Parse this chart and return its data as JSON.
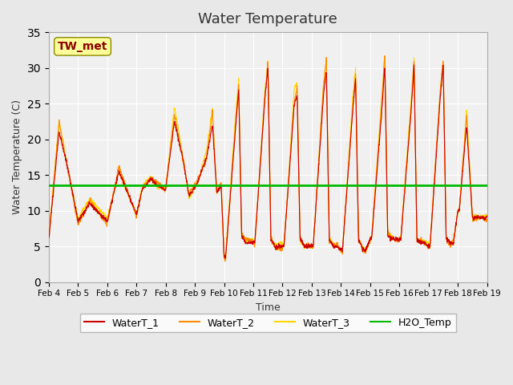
{
  "title": "Water Temperature",
  "xlabel": "Time",
  "ylabel": "Water Temperature (C)",
  "ylim": [
    0,
    35
  ],
  "xlim": [
    0,
    15
  ],
  "h2o_temp_value": 13.5,
  "annotation_text": "TW_met",
  "annotation_color": "#8B0000",
  "annotation_bg": "#FFFF99",
  "line_colors": {
    "WaterT_1": "#CC0000",
    "WaterT_2": "#FF8C00",
    "WaterT_3": "#FFD700",
    "H2O_Temp": "#00CC00"
  },
  "x_tick_labels": [
    "Feb 4",
    "Feb 5",
    "Feb 6",
    "Feb 7",
    "Feb 8",
    "Feb 9",
    "Feb 10",
    "Feb 11",
    "Feb 12",
    "Feb 13",
    "Feb 14",
    "Feb 15",
    "Feb 16",
    "Feb 17",
    "Feb 18",
    "Feb 19"
  ],
  "background_color": "#E8E8E8",
  "plot_bg_color": "#F0F0F0"
}
